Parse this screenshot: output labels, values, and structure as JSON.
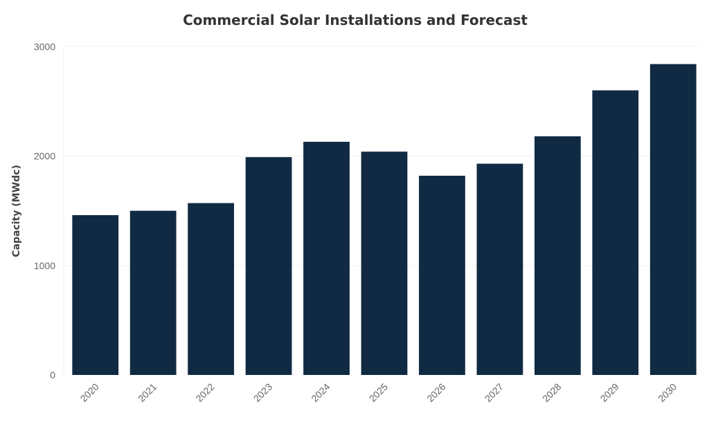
{
  "chart_data": {
    "type": "bar",
    "title": "Commercial Solar Installations and Forecast",
    "xlabel": "",
    "ylabel": "Capacity (MWdc)",
    "categories": [
      "2020",
      "2021",
      "2022",
      "2023",
      "2024",
      "2025",
      "2026",
      "2027",
      "2028",
      "2029",
      "2030"
    ],
    "values": [
      1460,
      1500,
      1570,
      1990,
      2130,
      2040,
      1820,
      1930,
      2180,
      2600,
      2840
    ],
    "ylim": [
      0,
      3000
    ],
    "yticks": [
      0,
      1000,
      2000,
      3000
    ],
    "grid": true,
    "legend": "none",
    "bar_color": "#102a43"
  }
}
